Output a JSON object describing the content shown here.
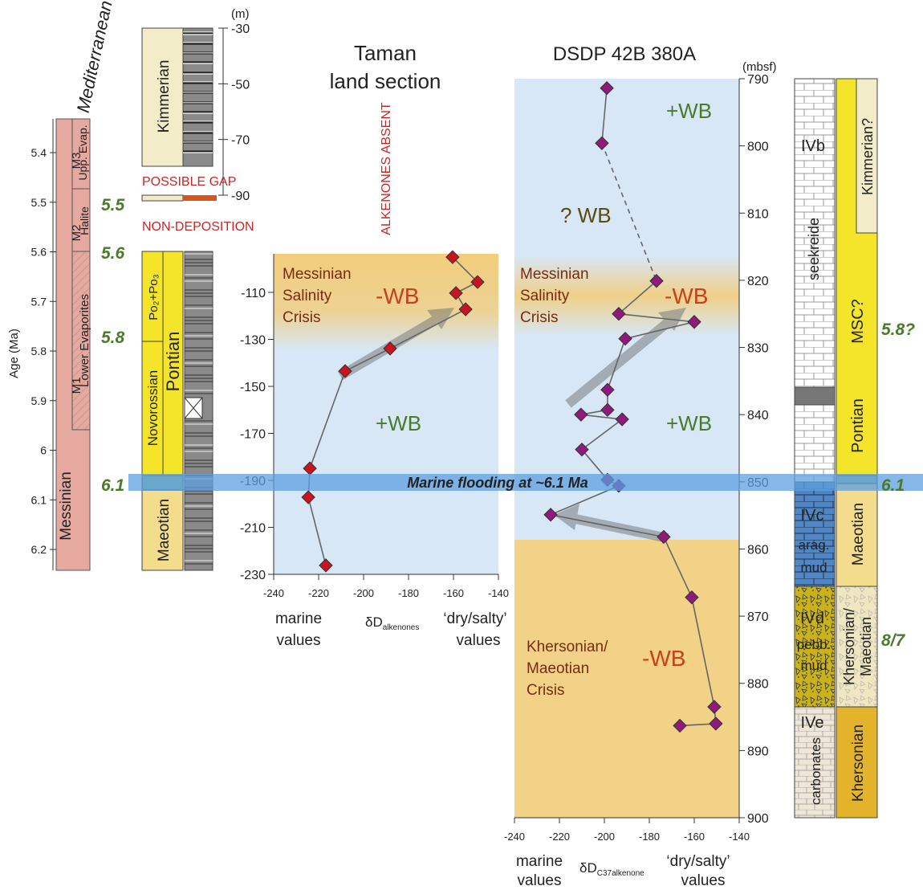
{
  "header": {
    "mediterranean": "Mediterranean"
  },
  "age_axis": {
    "label": "Age (Ma)",
    "lim": [
      6.242,
      5.332
    ],
    "ticks": [
      5.4,
      5.5,
      5.6,
      5.7,
      5.8,
      5.9,
      6.0,
      6.1,
      6.2
    ]
  },
  "mediterranean_column": {
    "stage": "Messinian",
    "units": [
      {
        "code": "M3",
        "label": "Upp. Evap."
      },
      {
        "code": "M2",
        "label": "Halite"
      },
      {
        "code": "M1",
        "label": "Lower Evaporites"
      }
    ]
  },
  "ages_left": [
    "5.5",
    "5.6",
    "5.8",
    "6.1"
  ],
  "ages_right": [
    "5.8?",
    "6.1",
    "8/7"
  ],
  "taman_column": {
    "height_unit": "(m)",
    "height_lim": [
      -90,
      -30
    ],
    "height_ticks": [
      -30,
      -50,
      -70,
      -90
    ],
    "kimmerian": "Kimmerian",
    "po": "Po₂+Po₃",
    "novorossian": "Novorossian",
    "pontian": "Pontian",
    "maeotian": "Maeotian"
  },
  "notes": {
    "possible_gap": "POSSIBLE GAP",
    "non_deposition": "NON-DEPOSITION",
    "alkenones_absent": "ALKENONES ABSENT"
  },
  "flooding": "Marine flooding at ~6.1 Ma",
  "dsdp_column": {
    "lithology": {
      "ivb": "IVb",
      "seekreide": "seekreide",
      "ivc": "IVc",
      "arag": "arag.",
      "mud1": "mud",
      "ivd": "IVd",
      "pebb": "pebb.",
      "mud2": "mud",
      "ive": "IVe",
      "carbonates": "carbonates"
    },
    "stages": {
      "kimmerian": "Kimmerian?",
      "msc": "MSC?",
      "pontian": "Pontian",
      "maeotian": "Maeotian",
      "khersonian_maeotian": [
        "Khersonian/",
        "Maeotian"
      ],
      "khersonian": "Khersonian"
    }
  },
  "chart_data": [
    {
      "type": "line",
      "title": [
        "Taman",
        "land section"
      ],
      "x": [
        -160.4,
        -149.3,
        -158.9,
        -154.6,
        -188.2,
        -208.2,
        -223.9,
        -224.6,
        -216.8
      ],
      "values": [
        -95.0,
        -105.6,
        -110.3,
        -117.2,
        -133.9,
        -143.5,
        -184.9,
        -197.2,
        -226.2
      ],
      "color": "#c8141e",
      "line_color": "#666666",
      "xlim": [
        -240,
        -140
      ],
      "xticks": [
        -240,
        -220,
        -200,
        -180,
        -160,
        -140
      ],
      "ylim": [
        -230,
        -93.6
      ],
      "yticks": [
        -110,
        -130,
        -150,
        -170,
        -190,
        -210,
        -230
      ],
      "xlabel_left": [
        "marine",
        "values"
      ],
      "xlabel_symbol": "δD",
      "xlabel_subscript": "alkenones",
      "xlabel_right": [
        "‘dry/salty’",
        "values"
      ],
      "annotations": {
        "msc": [
          "Messinian",
          "Salinity",
          "Crisis"
        ],
        "minus_wb": "-WB",
        "plus_wb": "+WB"
      },
      "dashed_segments": []
    },
    {
      "type": "line",
      "title": "DSDP 42B 380A",
      "y_unit": "(mbsf)",
      "x": [
        -198.9,
        -201.1,
        -176.8,
        -193.6,
        -160.0,
        -190.7,
        -198.6,
        -198.6,
        -210.4,
        -192.1,
        -210.0,
        -198.6,
        -193.6,
        -223.9,
        -173.6,
        -161.1,
        -151.1,
        -150.4,
        -166.4
      ],
      "values": [
        791.4,
        799.6,
        820.1,
        825.0,
        826.2,
        828.7,
        836.3,
        839.3,
        840.0,
        840.7,
        845.2,
        849.7,
        850.6,
        854.9,
        858.2,
        867.2,
        883.5,
        886.0,
        886.3
      ],
      "color": "#8e1a7a",
      "line_color": "#666666",
      "xlim": [
        -240,
        -140
      ],
      "xticks": [
        -240,
        -220,
        -200,
        -180,
        -160,
        -140
      ],
      "ylim": [
        900,
        790
      ],
      "yticks": [
        790,
        800,
        810,
        820,
        830,
        840,
        850,
        860,
        870,
        880,
        890,
        900
      ],
      "xlabel_left": [
        "marine",
        "values"
      ],
      "xlabel_symbol": "δD",
      "xlabel_subscript": "C37alkenone",
      "xlabel_right": [
        "‘dry/salty’",
        "values"
      ],
      "annotations": {
        "plus_wb_top": "+WB",
        "q_wb": "? WB",
        "msc": [
          "Messinian",
          "Salinity",
          "Crisis"
        ],
        "minus_wb": "-WB",
        "plus_wb": "+WB",
        "kmc": [
          "Khersonian/",
          "Maeotian",
          "Crisis"
        ],
        "minus_wb_low": "-WB"
      },
      "dashed_segments": [
        1
      ]
    }
  ]
}
